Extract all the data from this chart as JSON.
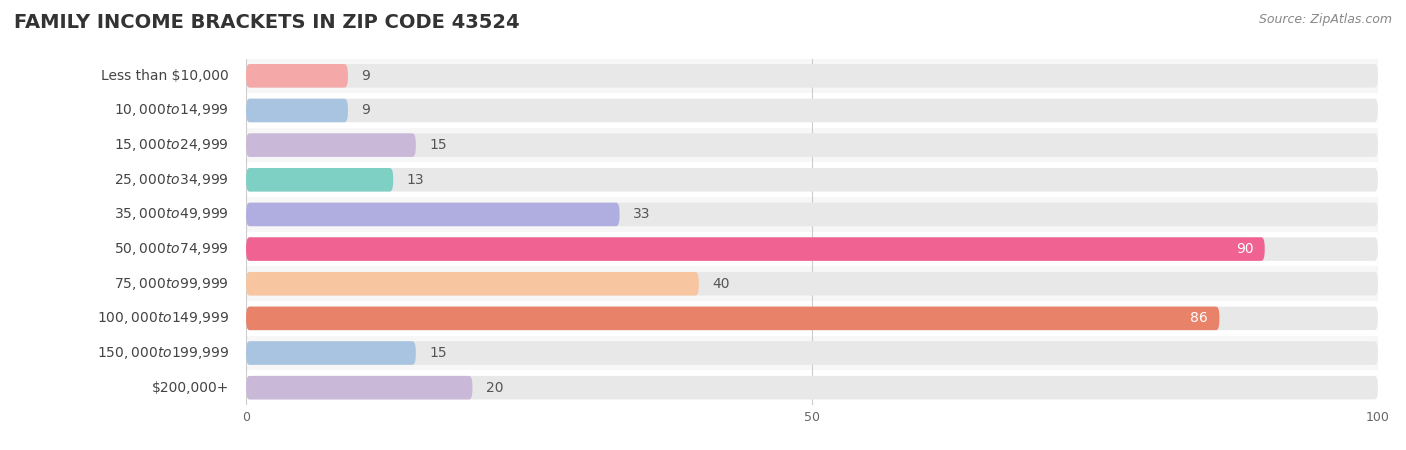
{
  "title": "FAMILY INCOME BRACKETS IN ZIP CODE 43524",
  "source": "Source: ZipAtlas.com",
  "categories": [
    "Less than $10,000",
    "$10,000 to $14,999",
    "$15,000 to $24,999",
    "$25,000 to $34,999",
    "$35,000 to $49,999",
    "$50,000 to $74,999",
    "$75,000 to $99,999",
    "$100,000 to $149,999",
    "$150,000 to $199,999",
    "$200,000+"
  ],
  "values": [
    9,
    9,
    15,
    13,
    33,
    90,
    40,
    86,
    15,
    20
  ],
  "bar_colors": [
    "#f4a9a8",
    "#a8c4e0",
    "#c9b8d8",
    "#7ecfc4",
    "#b0aee0",
    "#f06292",
    "#f7c59f",
    "#e8836a",
    "#a8c4e0",
    "#c9b8d8"
  ],
  "value_inside": [
    false,
    false,
    false,
    false,
    false,
    true,
    false,
    true,
    false,
    false
  ],
  "xlim": [
    0,
    100
  ],
  "xticks": [
    0,
    50,
    100
  ],
  "bar_bg_color": "#e8e8e8",
  "row_colors": [
    "#f7f7f7",
    "#ffffff"
  ],
  "title_fontsize": 14,
  "source_fontsize": 9,
  "value_fontsize": 10,
  "category_fontsize": 10
}
